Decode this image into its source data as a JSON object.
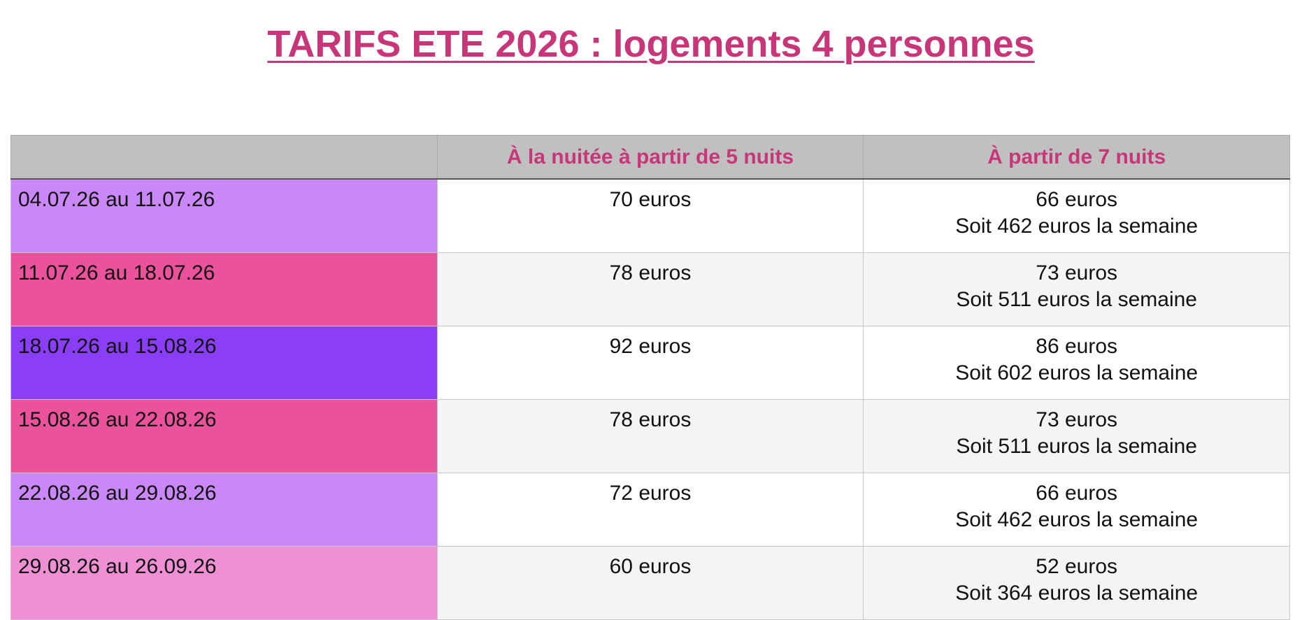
{
  "title": "TARIFS ETE 2026 : logements 4 personnes",
  "table": {
    "header": [
      "",
      "À la nuitée à partir de 5 nuits",
      "À partir de 7 nuits"
    ],
    "rows": [
      {
        "dates": "04.07.26 au 11.07.26",
        "color": "#c987f7",
        "nightly": "70 euros",
        "weekly_night": "66 euros",
        "weekly_total": "Soit 462 euros la semaine"
      },
      {
        "dates": "11.07.26 au 18.07.26",
        "color": "#ea539b",
        "nightly": "78 euros",
        "weekly_night": "73 euros",
        "weekly_total": "Soit 511 euros la semaine"
      },
      {
        "dates": "18.07.26 au 15.08.26",
        "color": "#8a3ef5",
        "nightly": "92 euros",
        "weekly_night": "86 euros",
        "weekly_total": "Soit 602 euros la semaine"
      },
      {
        "dates": "15.08.26 au 22.08.26",
        "color": "#ea539b",
        "nightly": "78 euros",
        "weekly_night": "73 euros",
        "weekly_total": "Soit 511 euros la semaine"
      },
      {
        "dates": "22.08.26 au 29.08.26",
        "color": "#c987f7",
        "nightly": "72 euros",
        "weekly_night": "66 euros",
        "weekly_total": "Soit 462 euros la semaine"
      },
      {
        "dates": "29.08.26 au 26.09.26",
        "color": "#ef90d5",
        "nightly": "60 euros",
        "weekly_night": "52 euros",
        "weekly_total": "Soit 364 euros la semaine"
      }
    ]
  }
}
